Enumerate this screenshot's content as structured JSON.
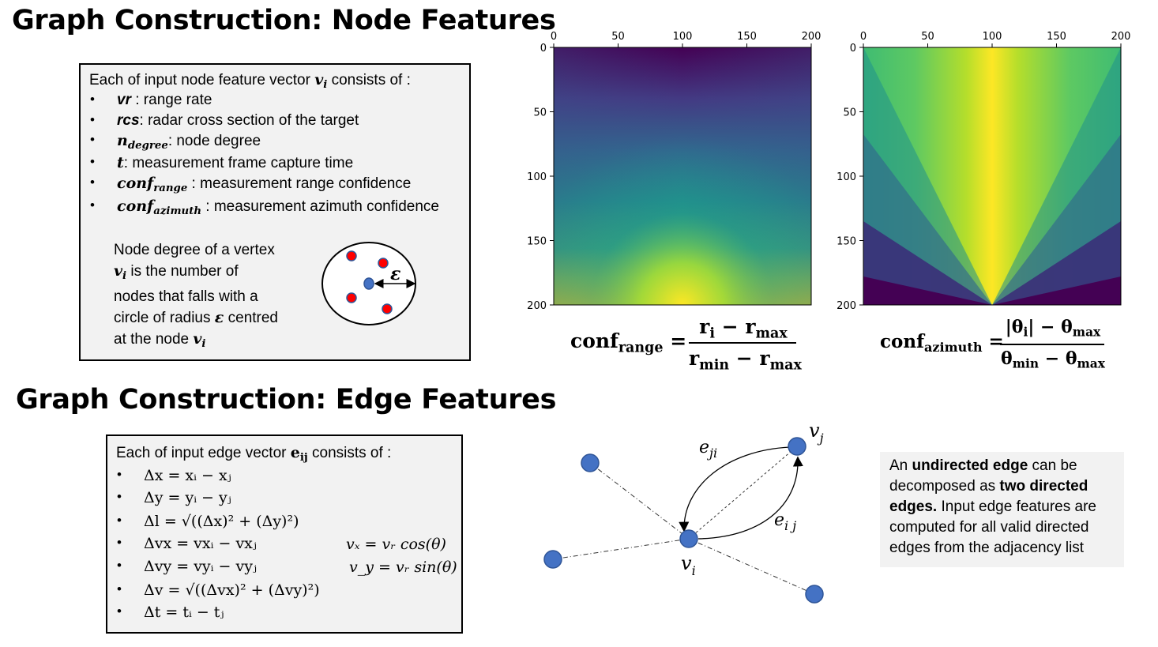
{
  "node_section": {
    "title": "Graph Construction: Node Features",
    "intro_prefix": "Each of  input node feature vector ",
    "intro_var": "v",
    "intro_sub": "i",
    "intro_suffix": " consists of :",
    "features": [
      {
        "sym": "vr",
        "sub": "",
        "desc": " : range rate"
      },
      {
        "sym": "rcs",
        "sub": "",
        "desc": ": radar cross section of the target"
      },
      {
        "sym": "n",
        "sub": "degree",
        "desc": ": node degree"
      },
      {
        "sym": "t",
        "sub": "",
        "desc": ": measurement frame capture time"
      },
      {
        "sym": "conf",
        "sub": "range",
        "desc": " : measurement range confidence"
      },
      {
        "sym": "conf",
        "sub": "azimuth",
        "desc": " : measurement azimuth confidence"
      }
    ],
    "degree_note": {
      "l1": "Node degree of a vertex",
      "l2_var": "v",
      "l2_sub": "i",
      "l2": " is the number of",
      "l3": "nodes that falls with a",
      "l4a": "circle of radius ",
      "l4_var": "ε",
      "l4b": " centred",
      "l5a": "at the node ",
      "l5_var": "v",
      "l5_sub": "i"
    },
    "epsilon_label": "ε"
  },
  "heatmaps": {
    "x_ticks": [
      "0",
      "50",
      "100",
      "150",
      "200"
    ],
    "y_ticks": [
      "0",
      "50",
      "100",
      "150",
      "200"
    ],
    "range_formula": {
      "lhs": "conf",
      "lhs_sub": "range",
      "num_a": "r",
      "num_a_sub": "i",
      "num_b": "r",
      "num_b_sub": "max",
      "den_a": "r",
      "den_a_sub": "min",
      "den_b": "r",
      "den_b_sub": "max"
    },
    "azimuth_formula": {
      "lhs": "conf",
      "lhs_sub": "azimuth",
      "num_a": "|θ",
      "num_a_sub": "i",
      "num_a_end": "|",
      "num_b": "θ",
      "num_b_sub": "max",
      "den_a": "θ",
      "den_a_sub": "min",
      "den_b": "θ",
      "den_b_sub": "max"
    }
  },
  "edge_section": {
    "title": "Graph Construction: Edge Features",
    "intro_prefix": "Each of  input edge vector ",
    "intro_var": "e",
    "intro_sub": "ij",
    "intro_suffix": " consists of :",
    "features": [
      "Δx =  xᵢ  − xⱼ",
      "Δy = yᵢ  − yⱼ",
      "Δl =  √((Δx)² + (Δy)²)",
      "Δvx = vxᵢ  − vxⱼ",
      "Δvy =  vyᵢ  − vyⱼ",
      "Δv =  √((Δvx)² + (Δvy)²)",
      "Δt = tᵢ − tⱼ"
    ],
    "vx_formula": "vₓ = vᵣ cos(θ)",
    "vy_formula": "v_y = vᵣ sin(θ)"
  },
  "edge_diagram": {
    "label_vj": "v",
    "label_vj_sub": "j",
    "label_vi": "v",
    "label_vi_sub": "i",
    "label_eji": "e",
    "label_eji_sub": "ji",
    "label_eij": "e",
    "label_eij_sub": "i j"
  },
  "edge_note": {
    "l1a": "An ",
    "l1b": "undirected edge",
    "l1c": " can be",
    "l2": "decomposed as ",
    "l2b": "two directed",
    "l3b": "edges.",
    "l3": " Input edge features are",
    "l4": "computed for all valid directed",
    "l5": "edges from the adjacency list"
  },
  "colors": {
    "node_fill": "#4472c4",
    "red_node": "#ff0000",
    "box_bg": "#f2f2f2"
  }
}
